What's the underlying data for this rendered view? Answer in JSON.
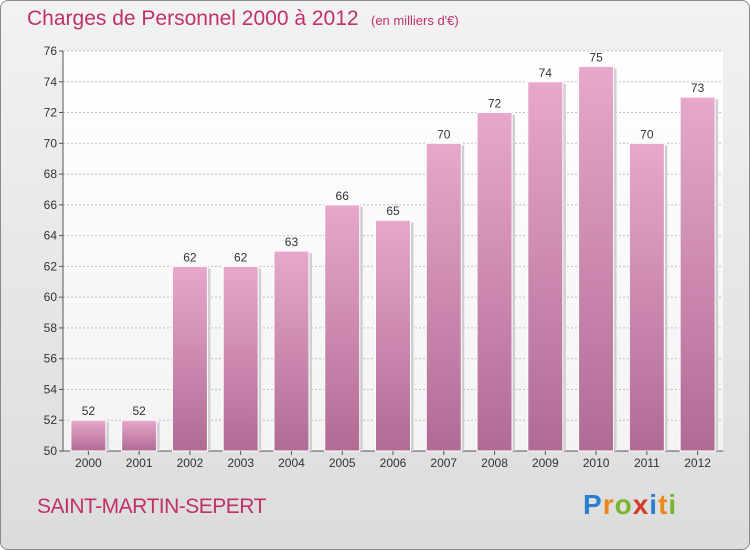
{
  "title": "Charges de Personnel 2000 à 2012",
  "subtitle": "(en milliers d'€)",
  "commune": "SAINT-MARTIN-SEPERT",
  "logo": {
    "text": "Proxiti",
    "letters": [
      {
        "ch": "P",
        "color": "#2a7fd0"
      },
      {
        "ch": "r",
        "color": "#e8891c"
      },
      {
        "ch": "o",
        "color": "#7ab52a"
      },
      {
        "ch": "x",
        "color": "#d43a2a"
      },
      {
        "ch": "i",
        "color": "#2a7fd0"
      },
      {
        "ch": "t",
        "color": "#e8891c"
      },
      {
        "ch": "i",
        "color": "#7ab52a"
      }
    ]
  },
  "colors": {
    "title": "#c0306a",
    "bar_top": "#e7a8cc",
    "bar_bottom": "#b06b95",
    "grid": "#bfbfbf"
  },
  "chart_data": {
    "type": "bar",
    "categories": [
      "2000",
      "2001",
      "2002",
      "2003",
      "2004",
      "2005",
      "2006",
      "2007",
      "2008",
      "2009",
      "2010",
      "2011",
      "2012"
    ],
    "values": [
      52,
      52,
      62,
      62,
      63,
      66,
      65,
      70,
      72,
      74,
      75,
      70,
      73
    ],
    "ylim": [
      50,
      76
    ],
    "yticks": [
      50,
      52,
      54,
      56,
      58,
      60,
      62,
      64,
      66,
      68,
      70,
      72,
      74,
      76
    ],
    "grid": true,
    "xlabel": "",
    "ylabel": ""
  }
}
